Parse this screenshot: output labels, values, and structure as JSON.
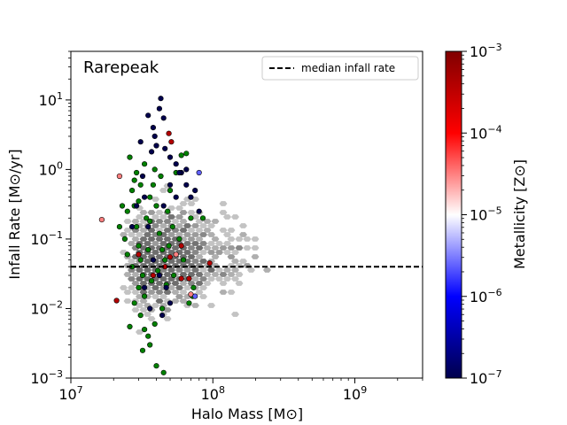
{
  "chart_data": {
    "type": "scatter",
    "title": "",
    "panel_label": "Rarepeak",
    "xlabel": "Halo Mass [M⊙]",
    "ylabel": "Infall Rate [M⊙/yr]",
    "x_scale": "log",
    "y_scale": "log",
    "xlim": [
      10000000,
      3000000000
    ],
    "ylim": [
      0.001,
      50
    ],
    "x_ticks": [
      {
        "value": 10000000,
        "base": "10",
        "exp": "7"
      },
      {
        "value": 100000000,
        "base": "10",
        "exp": "8"
      },
      {
        "value": 1000000000,
        "base": "10",
        "exp": "9"
      }
    ],
    "y_ticks": [
      {
        "value": 0.001,
        "base": "10",
        "exp": "−3"
      },
      {
        "value": 0.01,
        "base": "10",
        "exp": "−2"
      },
      {
        "value": 0.1,
        "base": "10",
        "exp": "−1"
      },
      {
        "value": 1,
        "base": "10",
        "exp": "0"
      },
      {
        "value": 10,
        "base": "10",
        "exp": "1"
      }
    ],
    "grid": false,
    "legend": {
      "placement": "top-right",
      "entries": [
        {
          "label": "median infall rate",
          "style": "dashed",
          "color": "#000000"
        }
      ]
    },
    "median_infall_rate": 0.04,
    "colorbar": {
      "label": "Metallicity [Z⊙]",
      "scale": "log",
      "range": [
        1e-07,
        0.001
      ],
      "ticks": [
        {
          "value": 1e-07,
          "base": "10",
          "exp": "−7"
        },
        {
          "value": 1e-06,
          "base": "10",
          "exp": "−6"
        },
        {
          "value": 1e-05,
          "base": "10",
          "exp": "−5"
        },
        {
          "value": 0.0001,
          "base": "10",
          "exp": "−4"
        },
        {
          "value": 0.001,
          "base": "10",
          "exp": "−3"
        }
      ],
      "colormap": "seismic",
      "stops": [
        "#00004c",
        "#0000ff",
        "#ffffff",
        "#ff0000",
        "#800000"
      ]
    },
    "hexbin_color": "#808080",
    "series": [
      {
        "marker_color": "#008000",
        "points": [
          [
            26000000.0,
            1.5
          ],
          [
            27000000.0,
            0.5
          ],
          [
            28000000.0,
            0.3
          ],
          [
            29000000.0,
            0.15
          ],
          [
            30000000.0,
            0.08
          ],
          [
            31000000.0,
            0.05
          ],
          [
            32000000.0,
            0.03
          ],
          [
            30000000.0,
            0.02
          ],
          [
            28000000.0,
            0.012
          ],
          [
            26000000.0,
            0.0055
          ],
          [
            33000000.0,
            0.005
          ],
          [
            35000000.0,
            0.004
          ],
          [
            32000000.0,
            0.0025
          ],
          [
            36000000.0,
            0.003
          ],
          [
            40000000.0,
            0.0015
          ],
          [
            45000000.0,
            0.0012
          ],
          [
            34000000.0,
            0.2
          ],
          [
            36000000.0,
            0.4
          ],
          [
            38000000.0,
            0.6
          ],
          [
            40000000.0,
            0.3
          ],
          [
            42000000.0,
            0.12
          ],
          [
            44000000.0,
            0.07
          ],
          [
            46000000.0,
            0.05
          ],
          [
            48000000.0,
            0.25
          ],
          [
            50000000.0,
            0.5
          ],
          [
            55000000.0,
            0.9
          ],
          [
            60000000.0,
            1.6
          ],
          [
            65000000.0,
            1.7
          ],
          [
            70000000.0,
            0.2
          ],
          [
            72000000.0,
            0.015
          ],
          [
            68000000.0,
            0.012
          ],
          [
            73000000.0,
            0.02
          ],
          [
            58000000.0,
            0.1
          ],
          [
            22000000.0,
            0.15
          ],
          [
            24000000.0,
            0.1
          ],
          [
            25000000.0,
            0.06
          ],
          [
            27000000.0,
            0.04
          ],
          [
            31000000.0,
            0.008
          ],
          [
            33000000.0,
            0.015
          ],
          [
            37000000.0,
            0.025
          ],
          [
            41000000.0,
            0.035
          ],
          [
            29000000.0,
            0.9
          ],
          [
            33000000.0,
            1.2
          ],
          [
            39000000.0,
            1.0
          ],
          [
            43000000.0,
            0.8
          ],
          [
            85000000.0,
            0.2
          ],
          [
            52000000.0,
            0.15
          ],
          [
            35000000.0,
            0.07
          ],
          [
            30000000.0,
            0.35
          ],
          [
            25000000.0,
            0.25
          ],
          [
            23000000.0,
            0.3
          ],
          [
            47000000.0,
            0.022
          ],
          [
            53000000.0,
            0.03
          ],
          [
            39000000.0,
            0.006
          ],
          [
            44000000.0,
            0.01
          ],
          [
            28000000.0,
            0.7
          ],
          [
            31000000.0,
            0.6
          ],
          [
            36000000.0,
            0.18
          ],
          [
            49000000.0,
            0.08
          ],
          [
            62000000.0,
            0.05
          ]
        ]
      },
      {
        "marker_color": "#00004c",
        "points": [
          [
            43000000.0,
            10.5
          ],
          [
            42000000.0,
            7.5
          ],
          [
            38000000.0,
            4.0
          ],
          [
            45000000.0,
            5.5
          ],
          [
            35000000.0,
            6.0
          ],
          [
            40000000.0,
            2.2
          ],
          [
            37000000.0,
            1.8
          ],
          [
            50000000.0,
            1.5
          ],
          [
            55000000.0,
            1.2
          ],
          [
            60000000.0,
            0.9
          ],
          [
            65000000.0,
            0.6
          ],
          [
            70000000.0,
            0.4
          ],
          [
            32000000.0,
            0.8
          ],
          [
            33000000.0,
            0.4
          ],
          [
            29000000.0,
            0.3
          ],
          [
            35000000.0,
            0.15
          ],
          [
            45000000.0,
            0.3
          ],
          [
            50000000.0,
            0.6
          ],
          [
            58000000.0,
            0.9
          ],
          [
            65000000.0,
            1.0
          ],
          [
            75000000.0,
            0.5
          ],
          [
            38000000.0,
            0.05
          ],
          [
            42000000.0,
            0.03
          ],
          [
            47000000.0,
            0.02
          ],
          [
            33000000.0,
            0.02
          ],
          [
            27000000.0,
            0.15
          ],
          [
            30000000.0,
            0.06
          ],
          [
            36000000.0,
            0.01
          ],
          [
            44000000.0,
            0.008
          ],
          [
            50000000.0,
            0.012
          ],
          [
            80000000.0,
            0.25
          ],
          [
            55000000.0,
            0.4
          ],
          [
            31000000.0,
            2.5
          ],
          [
            39000000.0,
            3.0
          ],
          [
            46000000.0,
            2.0
          ]
        ]
      },
      {
        "marker_color": "#b30000",
        "points": [
          [
            49000000.0,
            3.3
          ],
          [
            51000000.0,
            2.5
          ],
          [
            21000000.0,
            0.013
          ],
          [
            30000000.0,
            0.06
          ],
          [
            46000000.0,
            0.04
          ],
          [
            50000000.0,
            0.055
          ],
          [
            60000000.0,
            0.027
          ],
          [
            68000000.0,
            0.027
          ],
          [
            95000000.0,
            0.045
          ],
          [
            60000000.0,
            0.08
          ],
          [
            38000000.0,
            0.03
          ]
        ]
      },
      {
        "marker_color": "#ff8080",
        "points": [
          [
            22000000.0,
            0.8
          ],
          [
            16500000.0,
            0.19
          ],
          [
            55000000.0,
            0.06
          ],
          [
            70000000.0,
            0.016
          ]
        ]
      },
      {
        "marker_color": "#6060ff",
        "points": [
          [
            80000000.0,
            0.9
          ],
          [
            75000000.0,
            0.015
          ]
        ]
      }
    ]
  }
}
